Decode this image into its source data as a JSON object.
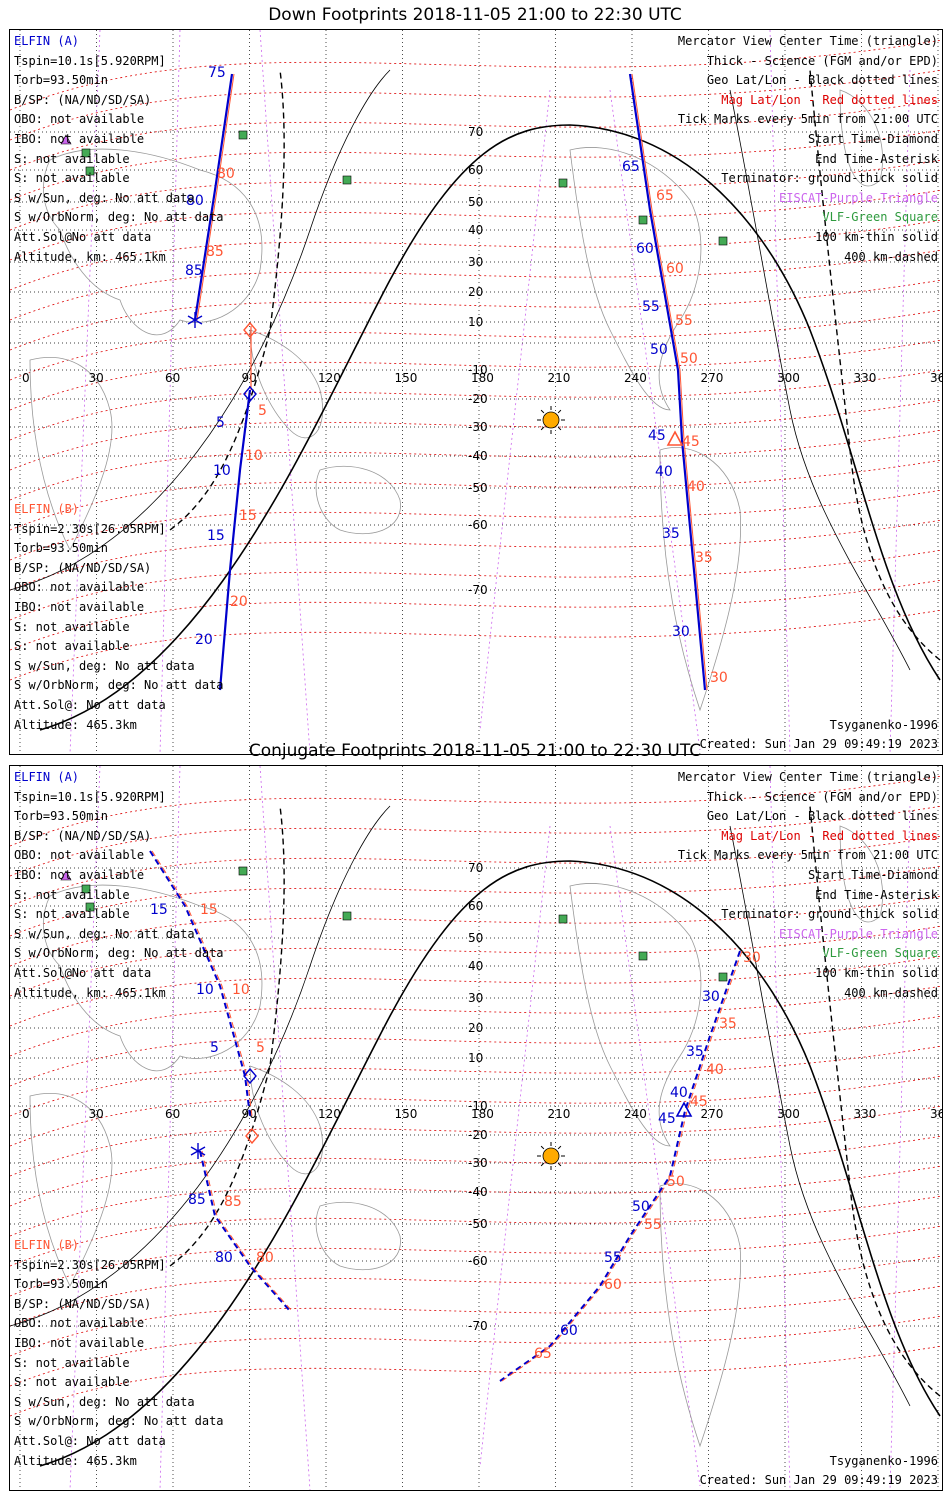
{
  "panels": [
    {
      "title": "Down Footprints 2018-11-05 21:00 to 22:30 UTC",
      "left_lines": [
        {
          "text": "ELFIN (A)",
          "cls": "blue"
        },
        {
          "text": "Tspin=10.1s[5.920RPM]",
          "cls": ""
        },
        {
          "text": "Torb=93.50min",
          "cls": ""
        },
        {
          "text": "B/SP: (NA/ND/SD/SA)",
          "cls": ""
        },
        {
          "text": "OBO: not available",
          "cls": ""
        },
        {
          "text": "IBO: not available",
          "cls": ""
        },
        {
          "text": "S: not available",
          "cls": ""
        },
        {
          "text": "S: not available",
          "cls": ""
        },
        {
          "text": "S w/Sun, deg: No att data",
          "cls": ""
        },
        {
          "text": "S w/OrbNorm, deg: No att data",
          "cls": ""
        },
        {
          "text": "Att.Sol@No att data",
          "cls": ""
        },
        {
          "text": "Altitude, km: 465.1km",
          "cls": ""
        }
      ],
      "left_lines_b": [
        {
          "text": "ELFIN (B)",
          "cls": "org"
        },
        {
          "text": "Tspin=2.30s[26.05RPM]",
          "cls": ""
        },
        {
          "text": "Torb=93.50min",
          "cls": ""
        },
        {
          "text": "B/SP: (NA/ND/SD/SA)",
          "cls": ""
        },
        {
          "text": "OBO: not available",
          "cls": ""
        },
        {
          "text": "IBO: not available",
          "cls": ""
        },
        {
          "text": "S: not available",
          "cls": ""
        },
        {
          "text": "S: not available",
          "cls": ""
        },
        {
          "text": "S w/Sun, deg: No att data",
          "cls": ""
        },
        {
          "text": "S w/OrbNorm, deg: No att data",
          "cls": ""
        },
        {
          "text": "Att.Sol@: No att data",
          "cls": ""
        },
        {
          "text": "Altitude: 465.3km",
          "cls": ""
        }
      ],
      "right_lines": [
        {
          "text": "Mercator View Center Time (triangle)",
          "cls": ""
        },
        {
          "text": "Thick - Science (FGM and/or EPD)",
          "cls": ""
        },
        {
          "text": "Geo Lat/Lon - Black dotted lines",
          "cls": ""
        },
        {
          "text": "Mag Lat/Lon - Red dotted lines",
          "cls": "red"
        },
        {
          "text": "Tick Marks every 5min from 21:00 UTC",
          "cls": ""
        },
        {
          "text": "Start Time-Diamond",
          "cls": ""
        },
        {
          "text": "End Time-Asterisk",
          "cls": ""
        },
        {
          "text": "Terminator: ground-thick solid",
          "cls": ""
        },
        {
          "text": "EISCAT-Purple Triangle",
          "cls": "purple"
        },
        {
          "text": "VLF-Green Square",
          "cls": "green"
        },
        {
          "text": "100 km-thin solid",
          "cls": ""
        },
        {
          "text": "400 km-dashed",
          "cls": ""
        }
      ],
      "footer_left": "Altitude: 465.3km",
      "footer_right_1": "Tsyganenko-1996",
      "footer_right_2": "Created: Sun Jan 29 09:49:19 2023"
    },
    {
      "title": "Conjugate Footprints 2018-11-05 21:00 to 22:30 UTC",
      "left_lines": [
        {
          "text": "ELFIN (A)",
          "cls": "blue"
        },
        {
          "text": "Tspin=10.1s[5.920RPM]",
          "cls": ""
        },
        {
          "text": "Torb=93.50min",
          "cls": ""
        },
        {
          "text": "B/SP: (NA/ND/SD/SA)",
          "cls": ""
        },
        {
          "text": "OBO: not available",
          "cls": ""
        },
        {
          "text": "IBO: not available",
          "cls": ""
        },
        {
          "text": "S: not available",
          "cls": ""
        },
        {
          "text": "S: not available",
          "cls": ""
        },
        {
          "text": "S w/Sun, deg: No att data",
          "cls": ""
        },
        {
          "text": "S w/OrbNorm, deg: No att data",
          "cls": ""
        },
        {
          "text": "Att.Sol@No att data",
          "cls": ""
        },
        {
          "text": "Altitude, km: 465.1km",
          "cls": ""
        }
      ],
      "left_lines_b": [
        {
          "text": "ELFIN (B)",
          "cls": "org"
        },
        {
          "text": "Tspin=2.30s[26.05RPM]",
          "cls": ""
        },
        {
          "text": "Torb=93.50min",
          "cls": ""
        },
        {
          "text": "B/SP: (NA/ND/SD/SA)",
          "cls": ""
        },
        {
          "text": "OBO: not available",
          "cls": ""
        },
        {
          "text": "IBO: not available",
          "cls": ""
        },
        {
          "text": "S: not available",
          "cls": ""
        },
        {
          "text": "S: not available",
          "cls": ""
        },
        {
          "text": "S w/Sun, deg: No att data",
          "cls": ""
        },
        {
          "text": "S w/OrbNorm, deg: No att data",
          "cls": ""
        },
        {
          "text": "Att.Sol@: No att data",
          "cls": ""
        },
        {
          "text": "Altitude: 465.3km",
          "cls": ""
        }
      ],
      "right_lines": [
        {
          "text": "Mercator View Center Time (triangle)",
          "cls": ""
        },
        {
          "text": "Thick - Science (FGM and/or EPD)",
          "cls": ""
        },
        {
          "text": "Geo Lat/Lon - Black dotted lines",
          "cls": ""
        },
        {
          "text": "Mag Lat/Lon - Red dotted lines",
          "cls": "red"
        },
        {
          "text": "Tick Marks every 5min from 21:00 UTC",
          "cls": ""
        },
        {
          "text": "Start Time-Diamond",
          "cls": ""
        },
        {
          "text": "End Time-Asterisk",
          "cls": ""
        },
        {
          "text": "Terminator: ground-thick solid",
          "cls": ""
        },
        {
          "text": "EISCAT-Purple Triangle",
          "cls": "purple"
        },
        {
          "text": "VLF-Green Square",
          "cls": "green"
        },
        {
          "text": "100 km-thin solid",
          "cls": ""
        },
        {
          "text": "400 km-dashed",
          "cls": ""
        }
      ],
      "footer_left": "Altitude: 465.3km",
      "footer_right_1": "Tsyganenko-1996",
      "footer_right_2": "Created: Sun Jan 29 09:49:19 2023"
    }
  ],
  "map": {
    "lon_ticks": [
      "0",
      "30",
      "60",
      "90",
      "120",
      "150",
      "180",
      "210",
      "240",
      "270",
      "300",
      "330",
      "360"
    ],
    "lat_ticks": [
      "70",
      "60",
      "50",
      "40",
      "30",
      "20",
      "10",
      "-10",
      "-20",
      "-30",
      "-40",
      "-50",
      "-60",
      "-70"
    ],
    "colors": {
      "elfin_a": "#0000cc",
      "elfin_b": "#ff5533",
      "mag": "#dd0000",
      "geo": "#000000",
      "eiscat": "#cc66ee",
      "vlf": "#44aa55",
      "sun": "#ffaa00"
    }
  },
  "tracks_down": {
    "a_north_labels": [
      "75",
      "80",
      "85"
    ],
    "b_north_labels": [
      "80",
      "85"
    ],
    "a_south_labels": [
      "5",
      "10",
      "15",
      "20"
    ],
    "b_south_labels": [
      "5",
      "10",
      "15",
      "20"
    ],
    "a_right_labels": [
      "65",
      "60",
      "55",
      "50",
      "45",
      "40",
      "35",
      "30"
    ],
    "b_right_labels": [
      "65",
      "60",
      "55",
      "50",
      "45",
      "40",
      "35",
      "30"
    ]
  },
  "tracks_conj": {
    "a_left_labels": [
      "15",
      "10",
      "5",
      "85",
      "80"
    ],
    "b_left_labels": [
      "15",
      "10",
      "5",
      "85",
      "80"
    ],
    "a_right_labels": [
      "30",
      "35",
      "40",
      "45",
      "50",
      "55",
      "60"
    ],
    "b_right_labels": [
      "30",
      "35",
      "40",
      "45",
      "50",
      "55",
      "60",
      "65"
    ]
  }
}
